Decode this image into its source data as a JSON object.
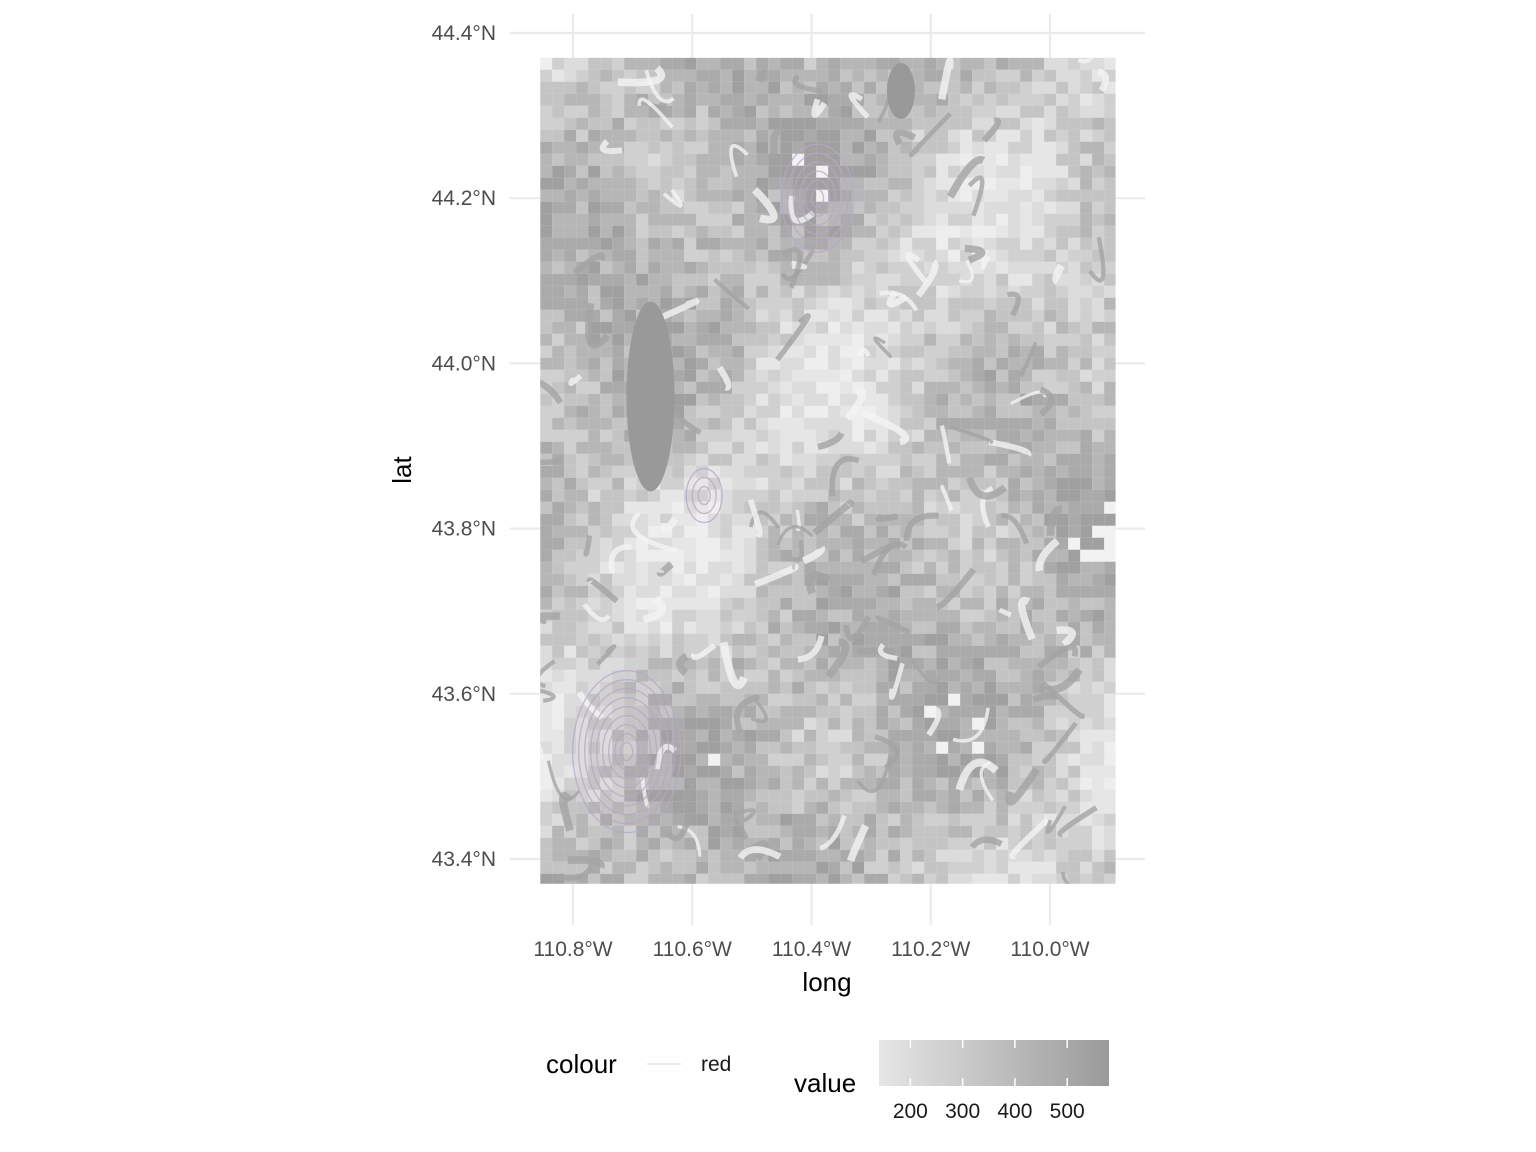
{
  "chart_data": {
    "type": "heatmap",
    "xlabel": "long",
    "ylabel": "lat",
    "x_ticks": [
      {
        "value": -110.8,
        "label": "110.8°W"
      },
      {
        "value": -110.6,
        "label": "110.6°W"
      },
      {
        "value": -110.4,
        "label": "110.4°W"
      },
      {
        "value": -110.2,
        "label": "110.2°W"
      },
      {
        "value": -110.0,
        "label": "110.0°W"
      }
    ],
    "y_ticks": [
      {
        "value": 43.4,
        "label": "43.4°N"
      },
      {
        "value": 43.6,
        "label": "43.6°N"
      },
      {
        "value": 43.8,
        "label": "43.8°N"
      },
      {
        "value": 44.0,
        "label": "44.0°N"
      },
      {
        "value": 44.2,
        "label": "44.2°N"
      },
      {
        "value": 44.4,
        "label": "44.4°N"
      }
    ],
    "xlim": [
      -110.855,
      -109.89
    ],
    "ylim": [
      43.37,
      44.37
    ],
    "grid": true,
    "fill_scale": {
      "name": "value",
      "breaks": [
        200,
        300,
        400,
        500
      ],
      "range": [
        140,
        580
      ],
      "low_color": "#e6e6e6",
      "high_color": "#9a9a9a"
    },
    "colour_legend": {
      "title": "colour",
      "entries": [
        "red"
      ]
    },
    "density_contours": [
      {
        "center": [
          -110.71,
          43.53
        ],
        "levels": 9,
        "color": "#b8a6c8"
      },
      {
        "center": [
          -110.39,
          44.2
        ],
        "levels": 6,
        "color": "#b8a6c8"
      },
      {
        "center": [
          -110.58,
          43.84
        ],
        "levels": 3,
        "color": "#b8a6c8"
      }
    ],
    "lakes": [
      {
        "name": "",
        "center": [
          -110.67,
          43.96
        ],
        "size": "large"
      },
      {
        "name": "",
        "center": [
          -110.25,
          44.33
        ],
        "size": "small"
      }
    ]
  },
  "legend_position": "bottom"
}
